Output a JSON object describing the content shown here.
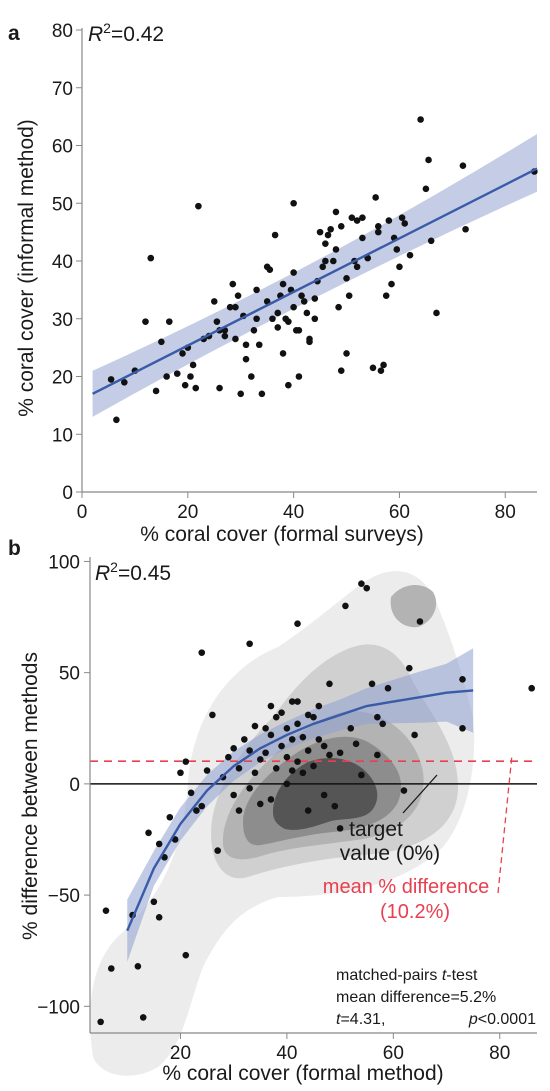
{
  "chart_data": [
    {
      "panel": "a",
      "type": "scatter",
      "xlabel": "% coral cover (formal surveys)",
      "ylabel": "% coral cover (informal method)",
      "xlim": [
        0,
        86
      ],
      "ylim": [
        0,
        80
      ],
      "xticks": [
        0,
        20,
        40,
        60,
        80
      ],
      "yticks": [
        0,
        10,
        20,
        30,
        40,
        50,
        60,
        70,
        80
      ],
      "annotation": {
        "r_label": "R",
        "r_sup": "2",
        "r_value": "=0.42"
      },
      "fit_line": {
        "x": [
          2,
          86
        ],
        "y": [
          17,
          56
        ],
        "ci_start": [
          13,
          21
        ],
        "ci_end": [
          52,
          62
        ]
      },
      "points": [
        [
          5.5,
          19.5
        ],
        [
          6.5,
          12.5
        ],
        [
          8,
          19
        ],
        [
          10,
          21
        ],
        [
          12,
          29.5
        ],
        [
          13,
          40.5
        ],
        [
          14,
          17.5
        ],
        [
          15,
          26
        ],
        [
          16,
          20
        ],
        [
          16.5,
          29.5
        ],
        [
          18,
          20.5
        ],
        [
          19,
          24
        ],
        [
          19.5,
          18.5
        ],
        [
          20,
          25
        ],
        [
          20.5,
          20
        ],
        [
          21,
          22
        ],
        [
          21.5,
          18
        ],
        [
          22,
          49.5
        ],
        [
          23,
          26.5
        ],
        [
          24,
          27
        ],
        [
          25,
          33
        ],
        [
          25.5,
          29.5
        ],
        [
          26,
          28
        ],
        [
          26,
          18
        ],
        [
          27,
          27
        ],
        [
          28,
          32
        ],
        [
          28.5,
          36
        ],
        [
          29,
          26.5
        ],
        [
          29.5,
          34
        ],
        [
          30,
          17
        ],
        [
          30.5,
          30.5
        ],
        [
          31,
          25.5
        ],
        [
          31,
          23
        ],
        [
          32,
          20
        ],
        [
          32.5,
          28
        ],
        [
          33,
          30
        ],
        [
          33.5,
          25.5
        ],
        [
          34,
          17
        ],
        [
          35,
          33
        ],
        [
          35.5,
          38.5
        ],
        [
          36,
          30
        ],
        [
          36.5,
          44.5
        ],
        [
          37,
          31
        ],
        [
          37.5,
          34
        ],
        [
          38,
          36
        ],
        [
          38,
          24
        ],
        [
          38.5,
          30
        ],
        [
          39,
          29.5
        ],
        [
          39.5,
          35
        ],
        [
          40,
          32
        ],
        [
          40,
          38
        ],
        [
          40.5,
          28
        ],
        [
          41,
          28
        ],
        [
          41,
          20
        ],
        [
          42,
          33
        ],
        [
          42.5,
          31
        ],
        [
          43,
          26
        ],
        [
          44,
          33.5
        ],
        [
          44.5,
          36.5
        ],
        [
          45,
          45
        ],
        [
          45.5,
          39
        ],
        [
          46,
          43
        ],
        [
          46.5,
          44.5
        ],
        [
          47,
          45.5
        ],
        [
          47.5,
          40
        ],
        [
          48,
          48.5
        ],
        [
          48.5,
          32
        ],
        [
          49,
          46
        ],
        [
          49,
          21
        ],
        [
          50,
          37
        ],
        [
          50.5,
          34
        ],
        [
          51,
          47.5
        ],
        [
          51.5,
          40
        ],
        [
          52,
          39
        ],
        [
          53,
          44
        ],
        [
          53,
          47.5
        ],
        [
          54,
          40.5
        ],
        [
          55,
          21.5
        ],
        [
          55.5,
          51
        ],
        [
          56,
          46
        ],
        [
          56,
          45
        ],
        [
          57,
          22
        ],
        [
          57.5,
          34
        ],
        [
          58,
          47
        ],
        [
          58.5,
          36
        ],
        [
          59,
          44
        ],
        [
          59.5,
          42
        ],
        [
          60,
          39
        ],
        [
          60.5,
          47.5
        ],
        [
          61,
          46.5
        ],
        [
          62,
          41
        ],
        [
          64,
          64.5
        ],
        [
          65,
          52.5
        ],
        [
          65.5,
          57.5
        ],
        [
          66,
          43.5
        ],
        [
          67,
          31
        ],
        [
          72,
          56.5
        ],
        [
          72.5,
          45.5
        ],
        [
          85.5,
          55.5
        ],
        [
          39,
          18.5
        ],
        [
          40,
          50
        ],
        [
          43,
          26.5
        ],
        [
          46,
          40
        ],
        [
          48,
          42
        ],
        [
          50,
          24
        ],
        [
          52,
          47
        ],
        [
          56.5,
          21
        ],
        [
          35,
          39
        ],
        [
          33,
          35
        ],
        [
          29,
          32
        ],
        [
          27,
          28
        ],
        [
          37,
          28.5
        ],
        [
          41.5,
          34
        ],
        [
          44,
          30
        ]
      ]
    },
    {
      "panel": "b",
      "type": "scatter",
      "xlabel": "% coral cover (formal method)",
      "ylabel": "% difference between methods",
      "xlim": [
        3,
        87
      ],
      "ylim": [
        -112,
        102
      ],
      "xticks": [
        20,
        40,
        60,
        80
      ],
      "yticks": [
        -100,
        -50,
        0,
        50,
        100
      ],
      "annotation": {
        "r_label": "R",
        "r_sup": "2",
        "r_value": "=0.45"
      },
      "reference_lines": {
        "target_value": 0,
        "mean_difference": 10.2
      },
      "labels": {
        "target_line1": "target",
        "target_line2": "value (0%)",
        "mean_line1": "mean % difference",
        "mean_line2": "(10.2%)"
      },
      "stats": {
        "line1_prefix": "matched-pairs ",
        "line1_italic": "t",
        "line1_suffix": "-test",
        "line2": "mean difference=5.2%",
        "line3_t": "t",
        "line3_t_value": "=4.31,",
        "line3_p": "p",
        "line3_p_value": "<0.0001"
      },
      "fit_curve": {
        "x": [
          10,
          15,
          20,
          25,
          30,
          35,
          40,
          45,
          50,
          55,
          60,
          65,
          70,
          75
        ],
        "y": [
          -66,
          -38,
          -18,
          -3,
          8,
          16,
          22,
          27,
          31,
          35,
          37,
          39,
          41,
          42
        ]
      },
      "points": [
        [
          5,
          -107
        ],
        [
          6,
          -57
        ],
        [
          7,
          -83
        ],
        [
          11,
          -59
        ],
        [
          12,
          -82
        ],
        [
          13,
          -105
        ],
        [
          14,
          -22
        ],
        [
          15,
          -53
        ],
        [
          16,
          -60
        ],
        [
          16,
          -27
        ],
        [
          17,
          -33
        ],
        [
          18,
          -15
        ],
        [
          19,
          -25
        ],
        [
          20,
          5
        ],
        [
          21,
          10
        ],
        [
          21,
          -77
        ],
        [
          22,
          -4
        ],
        [
          23,
          -12
        ],
        [
          24,
          -10
        ],
        [
          25,
          6
        ],
        [
          26,
          31
        ],
        [
          27,
          -30
        ],
        [
          28,
          3
        ],
        [
          29,
          12
        ],
        [
          30,
          16
        ],
        [
          31,
          -12
        ],
        [
          31,
          7
        ],
        [
          32,
          20
        ],
        [
          33,
          -2
        ],
        [
          33,
          15
        ],
        [
          34,
          26
        ],
        [
          34,
          5
        ],
        [
          35,
          11
        ],
        [
          35,
          -9
        ],
        [
          36,
          14
        ],
        [
          36,
          25
        ],
        [
          37,
          22
        ],
        [
          37,
          -7
        ],
        [
          38,
          7
        ],
        [
          38,
          30
        ],
        [
          39,
          32
        ],
        [
          39,
          17
        ],
        [
          40,
          25
        ],
        [
          40,
          12
        ],
        [
          40,
          0
        ],
        [
          41,
          37
        ],
        [
          41,
          20
        ],
        [
          41,
          6
        ],
        [
          42,
          37
        ],
        [
          42,
          27
        ],
        [
          42,
          10
        ],
        [
          43,
          21
        ],
        [
          43,
          5
        ],
        [
          44,
          15
        ],
        [
          44,
          -12
        ],
        [
          45,
          30
        ],
        [
          45,
          8
        ],
        [
          46,
          20
        ],
        [
          47,
          17
        ],
        [
          47,
          -5
        ],
        [
          48,
          13
        ],
        [
          48,
          45
        ],
        [
          49,
          -10
        ],
        [
          50,
          14
        ],
        [
          50,
          -20
        ],
        [
          51,
          80
        ],
        [
          52,
          25
        ],
        [
          53,
          18
        ],
        [
          54,
          90
        ],
        [
          54,
          4
        ],
        [
          55,
          88
        ],
        [
          56,
          45
        ],
        [
          57,
          30
        ],
        [
          57,
          13
        ],
        [
          58,
          27
        ],
        [
          59,
          43
        ],
        [
          62,
          -3
        ],
        [
          63,
          52
        ],
        [
          64,
          22
        ],
        [
          65,
          73
        ],
        [
          73,
          47
        ],
        [
          73,
          25
        ],
        [
          86,
          43
        ],
        [
          37,
          35
        ],
        [
          42,
          72
        ],
        [
          33,
          63
        ],
        [
          24,
          59
        ],
        [
          46,
          35
        ],
        [
          44,
          31
        ],
        [
          30,
          -5
        ]
      ]
    }
  ]
}
